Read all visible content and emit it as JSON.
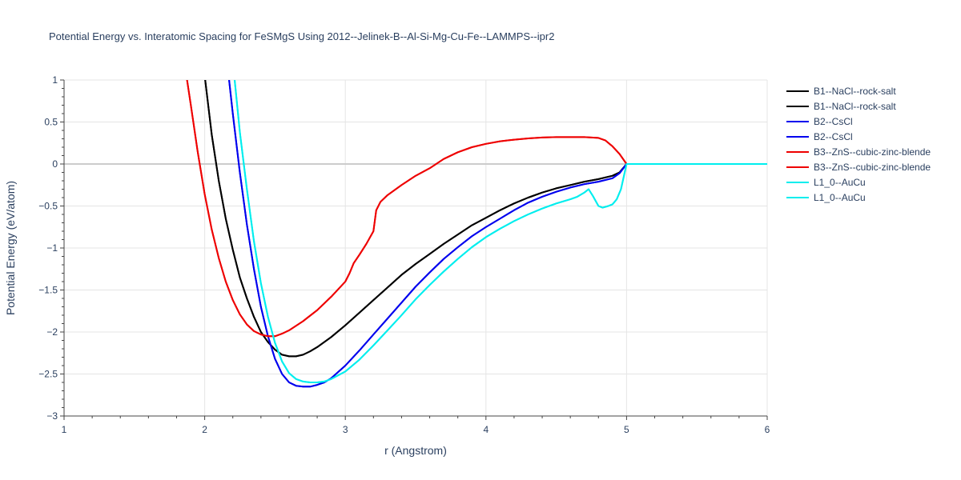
{
  "chart_data": {
    "type": "line",
    "title": "Potential Energy vs. Interatomic Spacing for FeSMgS Using 2012--Jelinek-B--Al-Si-Mg-Cu-Fe--LAMMPS--ipr2",
    "xlabel": "r (Angstrom)",
    "ylabel": "Potential Energy (eV/atom)",
    "xlim": [
      1,
      6
    ],
    "ylim": [
      -3,
      1
    ],
    "xticks": [
      1,
      2,
      3,
      4,
      5,
      6
    ],
    "xtick_labels": [
      "1",
      "2",
      "3",
      "4",
      "5",
      "6"
    ],
    "yticks": [
      1,
      0.5,
      0,
      -0.5,
      -1,
      -1.5,
      -2,
      -2.5,
      -3
    ],
    "ytick_labels": [
      "1",
      "0.5",
      "0",
      "−0.5",
      "−1",
      "−1.5",
      "−2",
      "−2.5",
      "−3"
    ],
    "grid": true,
    "legend_position": "right",
    "series": [
      {
        "name": "B1--NaCl--rock-salt",
        "color": "#000000",
        "x": [
          2.0,
          2.05,
          2.1,
          2.15,
          2.2,
          2.25,
          2.3,
          2.35,
          2.4,
          2.45,
          2.5,
          2.55,
          2.6,
          2.65,
          2.7,
          2.75,
          2.8,
          2.9,
          3.0,
          3.1,
          3.2,
          3.3,
          3.4,
          3.5,
          3.6,
          3.7,
          3.8,
          3.9,
          4.0,
          4.1,
          4.2,
          4.3,
          4.4,
          4.5,
          4.6,
          4.7,
          4.8,
          4.9,
          4.95,
          5.0,
          6.0
        ],
        "y": [
          1.05,
          0.35,
          -0.2,
          -0.65,
          -1.02,
          -1.35,
          -1.6,
          -1.82,
          -2.0,
          -2.12,
          -2.21,
          -2.27,
          -2.29,
          -2.29,
          -2.27,
          -2.23,
          -2.18,
          -2.06,
          -1.92,
          -1.77,
          -1.62,
          -1.47,
          -1.32,
          -1.19,
          -1.07,
          -0.95,
          -0.84,
          -0.73,
          -0.64,
          -0.55,
          -0.47,
          -0.4,
          -0.34,
          -0.29,
          -0.25,
          -0.21,
          -0.18,
          -0.14,
          -0.1,
          0.0,
          0.0
        ]
      },
      {
        "name": "B1--NaCl--rock-salt",
        "color": "#000000",
        "x": [
          2.0,
          2.05,
          2.1,
          2.15,
          2.2,
          2.25,
          2.3,
          2.35,
          2.4,
          2.45,
          2.5,
          2.55,
          2.6,
          2.65,
          2.7,
          2.75,
          2.8,
          2.9,
          3.0,
          3.1,
          3.2,
          3.3,
          3.4,
          3.5,
          3.6,
          3.7,
          3.8,
          3.9,
          4.0,
          4.1,
          4.2,
          4.3,
          4.4,
          4.5,
          4.6,
          4.7,
          4.8,
          4.9,
          4.95,
          5.0,
          6.0
        ],
        "y": [
          1.05,
          0.35,
          -0.2,
          -0.65,
          -1.02,
          -1.35,
          -1.6,
          -1.82,
          -2.0,
          -2.12,
          -2.21,
          -2.27,
          -2.29,
          -2.29,
          -2.27,
          -2.23,
          -2.18,
          -2.06,
          -1.92,
          -1.77,
          -1.62,
          -1.47,
          -1.32,
          -1.19,
          -1.07,
          -0.95,
          -0.84,
          -0.73,
          -0.64,
          -0.55,
          -0.47,
          -0.4,
          -0.34,
          -0.29,
          -0.25,
          -0.21,
          -0.18,
          -0.14,
          -0.1,
          0.0,
          0.0
        ]
      },
      {
        "name": "B2--CsCl",
        "color": "#0000ee",
        "x": [
          2.17,
          2.2,
          2.25,
          2.3,
          2.35,
          2.4,
          2.45,
          2.5,
          2.55,
          2.6,
          2.65,
          2.7,
          2.75,
          2.8,
          2.85,
          2.9,
          3.0,
          3.1,
          3.2,
          3.3,
          3.4,
          3.5,
          3.6,
          3.7,
          3.8,
          3.9,
          4.0,
          4.1,
          4.2,
          4.3,
          4.4,
          4.5,
          4.6,
          4.7,
          4.8,
          4.9,
          4.95,
          5.0,
          6.0
        ],
        "y": [
          1.05,
          0.6,
          -0.1,
          -0.72,
          -1.25,
          -1.7,
          -2.05,
          -2.32,
          -2.5,
          -2.6,
          -2.64,
          -2.65,
          -2.65,
          -2.63,
          -2.6,
          -2.55,
          -2.4,
          -2.22,
          -2.03,
          -1.84,
          -1.65,
          -1.46,
          -1.29,
          -1.13,
          -0.99,
          -0.86,
          -0.75,
          -0.65,
          -0.55,
          -0.46,
          -0.39,
          -0.33,
          -0.28,
          -0.24,
          -0.21,
          -0.17,
          -0.11,
          0.0,
          0.0
        ]
      },
      {
        "name": "B2--CsCl",
        "color": "#0000ee",
        "x": [
          2.17,
          2.2,
          2.25,
          2.3,
          2.35,
          2.4,
          2.45,
          2.5,
          2.55,
          2.6,
          2.65,
          2.7,
          2.75,
          2.8,
          2.85,
          2.9,
          3.0,
          3.1,
          3.2,
          3.3,
          3.4,
          3.5,
          3.6,
          3.7,
          3.8,
          3.9,
          4.0,
          4.1,
          4.2,
          4.3,
          4.4,
          4.5,
          4.6,
          4.7,
          4.8,
          4.9,
          4.95,
          5.0,
          6.0
        ],
        "y": [
          1.05,
          0.6,
          -0.1,
          -0.72,
          -1.25,
          -1.7,
          -2.05,
          -2.32,
          -2.5,
          -2.6,
          -2.64,
          -2.65,
          -2.65,
          -2.63,
          -2.6,
          -2.55,
          -2.4,
          -2.22,
          -2.03,
          -1.84,
          -1.65,
          -1.46,
          -1.29,
          -1.13,
          -0.99,
          -0.86,
          -0.75,
          -0.65,
          -0.55,
          -0.46,
          -0.39,
          -0.33,
          -0.28,
          -0.24,
          -0.21,
          -0.17,
          -0.11,
          0.0,
          0.0
        ]
      },
      {
        "name": "B3--ZnS--cubic-zinc-blende",
        "color": "#ee0000",
        "x": [
          1.87,
          1.9,
          1.95,
          2.0,
          2.05,
          2.1,
          2.15,
          2.2,
          2.25,
          2.3,
          2.35,
          2.4,
          2.45,
          2.5,
          2.55,
          2.6,
          2.7,
          2.8,
          2.9,
          3.0,
          3.03,
          3.06,
          3.1,
          3.15,
          3.2,
          3.22,
          3.25,
          3.3,
          3.4,
          3.5,
          3.6,
          3.7,
          3.8,
          3.9,
          4.0,
          4.1,
          4.2,
          4.3,
          4.4,
          4.5,
          4.6,
          4.7,
          4.8,
          4.85,
          4.9,
          4.95,
          5.0,
          6.0
        ],
        "y": [
          1.05,
          0.72,
          0.15,
          -0.36,
          -0.78,
          -1.12,
          -1.4,
          -1.62,
          -1.79,
          -1.91,
          -1.99,
          -2.03,
          -2.05,
          -2.05,
          -2.02,
          -1.98,
          -1.87,
          -1.74,
          -1.58,
          -1.4,
          -1.3,
          -1.18,
          -1.08,
          -0.95,
          -0.8,
          -0.55,
          -0.45,
          -0.37,
          -0.25,
          -0.14,
          -0.05,
          0.06,
          0.14,
          0.2,
          0.24,
          0.27,
          0.29,
          0.305,
          0.315,
          0.32,
          0.32,
          0.32,
          0.31,
          0.28,
          0.21,
          0.12,
          0.0,
          0.0
        ]
      },
      {
        "name": "B3--ZnS--cubic-zinc-blende",
        "color": "#ee0000",
        "x": [
          1.87,
          1.9,
          1.95,
          2.0,
          2.05,
          2.1,
          2.15,
          2.2,
          2.25,
          2.3,
          2.35,
          2.4,
          2.45,
          2.5,
          2.55,
          2.6,
          2.7,
          2.8,
          2.9,
          3.0,
          3.03,
          3.06,
          3.1,
          3.15,
          3.2,
          3.22,
          3.25,
          3.3,
          3.4,
          3.5,
          3.6,
          3.7,
          3.8,
          3.9,
          4.0,
          4.1,
          4.2,
          4.3,
          4.4,
          4.5,
          4.6,
          4.7,
          4.8,
          4.85,
          4.9,
          4.95,
          5.0,
          6.0
        ],
        "y": [
          1.05,
          0.72,
          0.15,
          -0.36,
          -0.78,
          -1.12,
          -1.4,
          -1.62,
          -1.79,
          -1.91,
          -1.99,
          -2.03,
          -2.05,
          -2.05,
          -2.02,
          -1.98,
          -1.87,
          -1.74,
          -1.58,
          -1.4,
          -1.3,
          -1.18,
          -1.08,
          -0.95,
          -0.8,
          -0.55,
          -0.45,
          -0.37,
          -0.25,
          -0.14,
          -0.05,
          0.06,
          0.14,
          0.2,
          0.24,
          0.27,
          0.29,
          0.305,
          0.315,
          0.32,
          0.32,
          0.32,
          0.31,
          0.28,
          0.21,
          0.12,
          0.0,
          0.0
        ]
      },
      {
        "name": "L1_0--AuCu",
        "color": "#00eeee",
        "x": [
          2.21,
          2.25,
          2.3,
          2.35,
          2.4,
          2.45,
          2.5,
          2.55,
          2.6,
          2.65,
          2.7,
          2.75,
          2.8,
          2.85,
          2.9,
          3.0,
          3.1,
          3.2,
          3.3,
          3.4,
          3.5,
          3.6,
          3.7,
          3.8,
          3.9,
          4.0,
          4.1,
          4.2,
          4.3,
          4.4,
          4.5,
          4.6,
          4.65,
          4.7,
          4.73,
          4.76,
          4.8,
          4.83,
          4.87,
          4.9,
          4.93,
          4.96,
          5.0,
          6.0
        ],
        "y": [
          1.05,
          0.38,
          -0.3,
          -0.92,
          -1.42,
          -1.82,
          -2.13,
          -2.35,
          -2.49,
          -2.56,
          -2.59,
          -2.6,
          -2.6,
          -2.59,
          -2.56,
          -2.47,
          -2.33,
          -2.16,
          -1.98,
          -1.8,
          -1.61,
          -1.44,
          -1.28,
          -1.13,
          -0.99,
          -0.87,
          -0.77,
          -0.68,
          -0.6,
          -0.53,
          -0.47,
          -0.42,
          -0.39,
          -0.34,
          -0.3,
          -0.38,
          -0.5,
          -0.52,
          -0.5,
          -0.48,
          -0.42,
          -0.3,
          0.0,
          0.0
        ]
      },
      {
        "name": "L1_0--AuCu",
        "color": "#00eeee",
        "x": [
          2.21,
          2.25,
          2.3,
          2.35,
          2.4,
          2.45,
          2.5,
          2.55,
          2.6,
          2.65,
          2.7,
          2.75,
          2.8,
          2.85,
          2.9,
          3.0,
          3.1,
          3.2,
          3.3,
          3.4,
          3.5,
          3.6,
          3.7,
          3.8,
          3.9,
          4.0,
          4.1,
          4.2,
          4.3,
          4.4,
          4.5,
          4.6,
          4.65,
          4.7,
          4.73,
          4.76,
          4.8,
          4.83,
          4.87,
          4.9,
          4.93,
          4.96,
          5.0,
          6.0
        ],
        "y": [
          1.05,
          0.38,
          -0.3,
          -0.92,
          -1.42,
          -1.82,
          -2.13,
          -2.35,
          -2.49,
          -2.56,
          -2.59,
          -2.6,
          -2.6,
          -2.59,
          -2.56,
          -2.47,
          -2.33,
          -2.16,
          -1.98,
          -1.8,
          -1.61,
          -1.44,
          -1.28,
          -1.13,
          -0.99,
          -0.87,
          -0.77,
          -0.68,
          -0.6,
          -0.53,
          -0.47,
          -0.42,
          -0.39,
          -0.34,
          -0.3,
          -0.38,
          -0.5,
          -0.52,
          -0.5,
          -0.48,
          -0.42,
          -0.3,
          0.0,
          0.0
        ]
      }
    ]
  }
}
